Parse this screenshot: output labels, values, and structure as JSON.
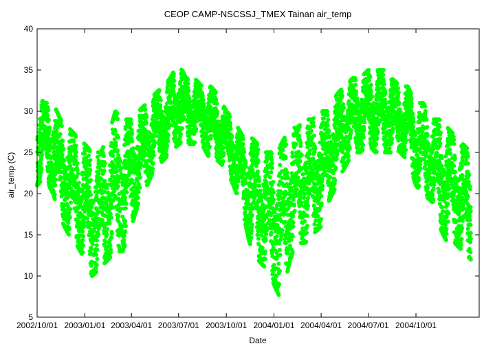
{
  "chart_data": {
    "type": "scatter",
    "title": "CEOP CAMP-NSCSSJ_TMEX Tainan  air_temp",
    "xlabel": "Date",
    "ylabel": "air_temp (C)",
    "ylim": [
      5,
      40
    ],
    "xlim": [
      "2002-10-01",
      "2005-01-31"
    ],
    "yticks": [
      "5",
      "10",
      "15",
      "20",
      "25",
      "30",
      "35",
      "40"
    ],
    "xticks": [
      {
        "date": "2002-10-01",
        "label": "2002/10/01"
      },
      {
        "date": "2003-01-01",
        "label": "2003/01/01"
      },
      {
        "date": "2003-04-01",
        "label": "2003/04/01"
      },
      {
        "date": "2003-07-01",
        "label": "2003/07/01"
      },
      {
        "date": "2003-10-01",
        "label": "2003/10/01"
      },
      {
        "date": "2004-01-01",
        "label": "2004/01/01"
      },
      {
        "date": "2004-04-01",
        "label": "2004/04/01"
      },
      {
        "date": "2004-07-01",
        "label": "2004/07/01"
      },
      {
        "date": "2004-10-01",
        "label": "2004/10/01"
      }
    ],
    "grid": false,
    "legend": "none",
    "color": "#00ff00",
    "series": [
      {
        "x": [
          "2002-10-01",
          "2002-10-15",
          "2002-11-01",
          "2002-11-15",
          "2002-12-01",
          "2002-12-15",
          "2003-01-01",
          "2003-01-15",
          "2003-02-01",
          "2003-02-15",
          "2003-03-01",
          "2003-03-15",
          "2003-04-01",
          "2003-04-15",
          "2003-05-01",
          "2003-05-15",
          "2003-06-01",
          "2003-06-15",
          "2003-07-01",
          "2003-07-15",
          "2003-08-01",
          "2003-08-15",
          "2003-09-01",
          "2003-09-15",
          "2003-10-01",
          "2003-10-15",
          "2003-11-01",
          "2003-11-15",
          "2003-12-01",
          "2003-12-15",
          "2004-01-01",
          "2004-01-15",
          "2004-02-01",
          "2004-02-15",
          "2004-03-01",
          "2004-03-15",
          "2004-04-01",
          "2004-04-15",
          "2004-05-01",
          "2004-05-15",
          "2004-06-01",
          "2004-06-15",
          "2004-07-01",
          "2004-07-15",
          "2004-08-01",
          "2004-08-15",
          "2004-09-01",
          "2004-09-15",
          "2004-10-01",
          "2004-10-15",
          "2004-11-01",
          "2004-11-15",
          "2004-12-01",
          "2004-12-15",
          "2005-01-15"
        ],
        "y_min": [
          21,
          22,
          20,
          17,
          15,
          14,
          12,
          10,
          11,
          12,
          13,
          13,
          16,
          19,
          21,
          23,
          24,
          25,
          26,
          26,
          26,
          26,
          24,
          24,
          23,
          21,
          18,
          14,
          12,
          11,
          9,
          7,
          12,
          14,
          14,
          15,
          16,
          19,
          21,
          23,
          25,
          25,
          26,
          25,
          25,
          25,
          25,
          24,
          21,
          20,
          19,
          16,
          14,
          14,
          12
        ],
        "y_max": [
          32,
          31,
          31,
          29,
          28,
          27,
          26,
          25,
          25,
          27,
          30,
          29,
          29,
          30,
          31,
          32,
          33,
          34,
          36,
          34,
          34,
          33,
          33,
          32,
          30,
          29,
          27,
          27,
          26,
          25,
          25,
          26,
          28,
          28,
          29,
          29,
          30,
          30,
          32,
          33,
          34,
          34,
          35,
          35,
          35,
          34,
          33,
          33,
          31,
          31,
          29,
          29,
          28,
          27,
          25
        ]
      }
    ]
  }
}
